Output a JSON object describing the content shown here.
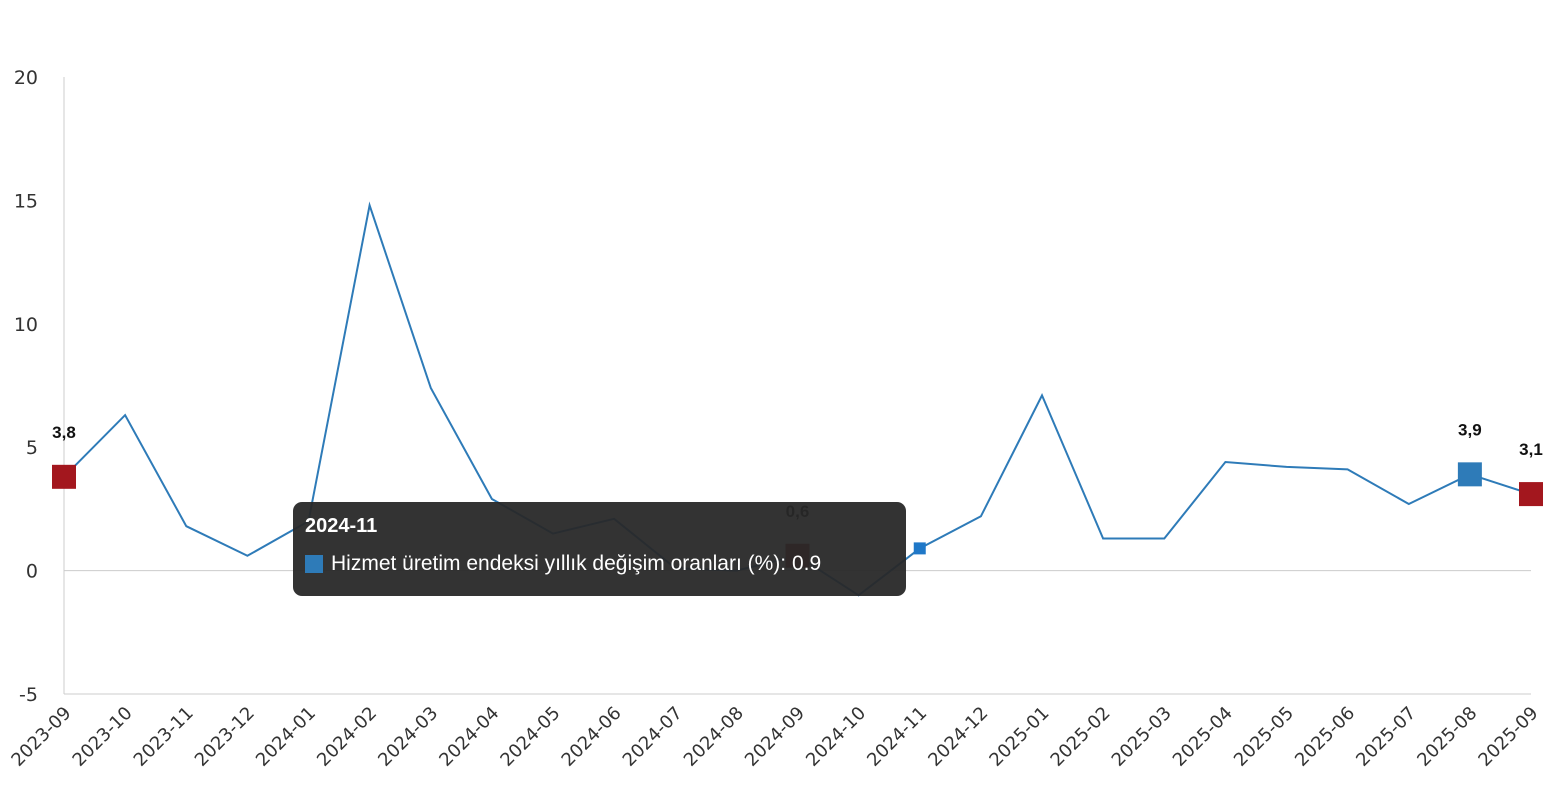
{
  "chart_data": {
    "type": "line",
    "categories": [
      "2023-09",
      "2023-10",
      "2023-11",
      "2023-12",
      "2024-01",
      "2024-02",
      "2024-03",
      "2024-04",
      "2024-05",
      "2024-06",
      "2024-07",
      "2024-08",
      "2024-09",
      "2024-10",
      "2024-11",
      "2024-12",
      "2025-01",
      "2025-02",
      "2025-03",
      "2025-04",
      "2025-05",
      "2025-06",
      "2025-07",
      "2025-08",
      "2025-09"
    ],
    "series": [
      {
        "name": "Hizmet üretim endeksi yıllık değişim oranları (%)",
        "color": "#2e7bb8",
        "values": [
          3.8,
          6.3,
          1.8,
          0.6,
          2.0,
          14.8,
          7.4,
          2.9,
          1.5,
          2.1,
          0.1,
          0.0,
          0.6,
          -1.0,
          0.9,
          2.2,
          7.1,
          1.3,
          1.3,
          4.4,
          4.2,
          4.1,
          2.7,
          3.9,
          3.1
        ]
      }
    ],
    "ylim": [
      -5,
      20
    ],
    "yticks": [
      "-5",
      "0",
      "5",
      "10",
      "15",
      "20"
    ],
    "grid": "zero-line only",
    "legend": "none",
    "highlighted_points": [
      {
        "index": 0,
        "label": "3,8",
        "color": "#a3171e"
      },
      {
        "index": 12,
        "label": "0,6",
        "color": "#a3171e"
      },
      {
        "index": 23,
        "label": "3,9",
        "color": "#2e7bb8"
      },
      {
        "index": 24,
        "label": "3,1",
        "color": "#a3171e"
      }
    ],
    "tooltip": {
      "title": "2024-11",
      "series_name": "Hizmet üretim endeksi yıllık değişim oranları (%)",
      "separator": ": ",
      "value": "0.9",
      "swatch_color": "#2e7bb8",
      "index": 14
    }
  }
}
